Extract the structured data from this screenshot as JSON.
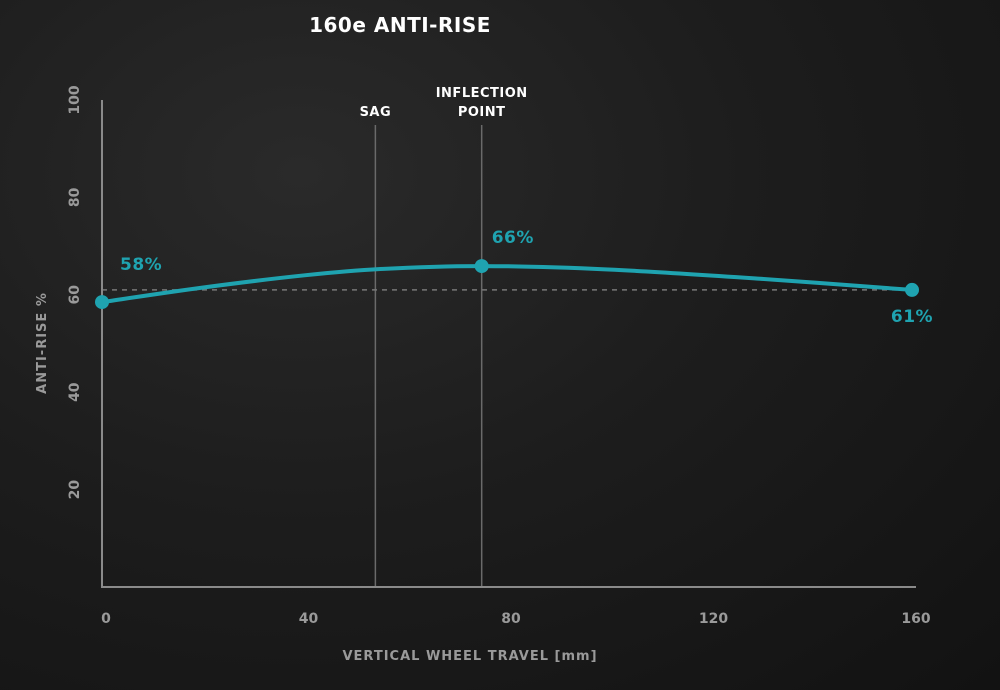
{
  "chart_data": {
    "type": "line",
    "title": "160e ANTI-RISE",
    "xlabel": "VERTICAL WHEEL TRAVEL [mm]",
    "ylabel": "ANTI-RISE %",
    "xlim": [
      0,
      160
    ],
    "ylim": [
      0,
      100
    ],
    "x_ticks": [
      "0",
      "40",
      "80",
      "120",
      "160"
    ],
    "y_ticks": [
      "20",
      "40",
      "60",
      "80",
      "100"
    ],
    "series": [
      {
        "x": [
          0,
          20,
          40,
          55,
          75,
          100,
          130,
          160
        ],
        "values": [
          58.5,
          61.5,
          64,
          65.3,
          65.9,
          65.2,
          63.3,
          61
        ],
        "color": "#1fa3b0"
      }
    ],
    "points": [
      {
        "x": 0,
        "y": 58.5,
        "label": "58%"
      },
      {
        "x": 75,
        "y": 65.9,
        "label": "66%"
      },
      {
        "x": 160,
        "y": 61,
        "label": "61%"
      }
    ],
    "reference_line": {
      "y": 61,
      "style": "dashed"
    },
    "markers": [
      {
        "x": 54,
        "label": "SAG"
      },
      {
        "x": 75,
        "label_lines": [
          "INFLECTION",
          "POINT"
        ]
      }
    ],
    "grid": false,
    "colors": {
      "series": "#1fa3b0",
      "axis": "#8a8a8a",
      "marker_line": "#6a6a6a",
      "reference": "#777777"
    }
  }
}
